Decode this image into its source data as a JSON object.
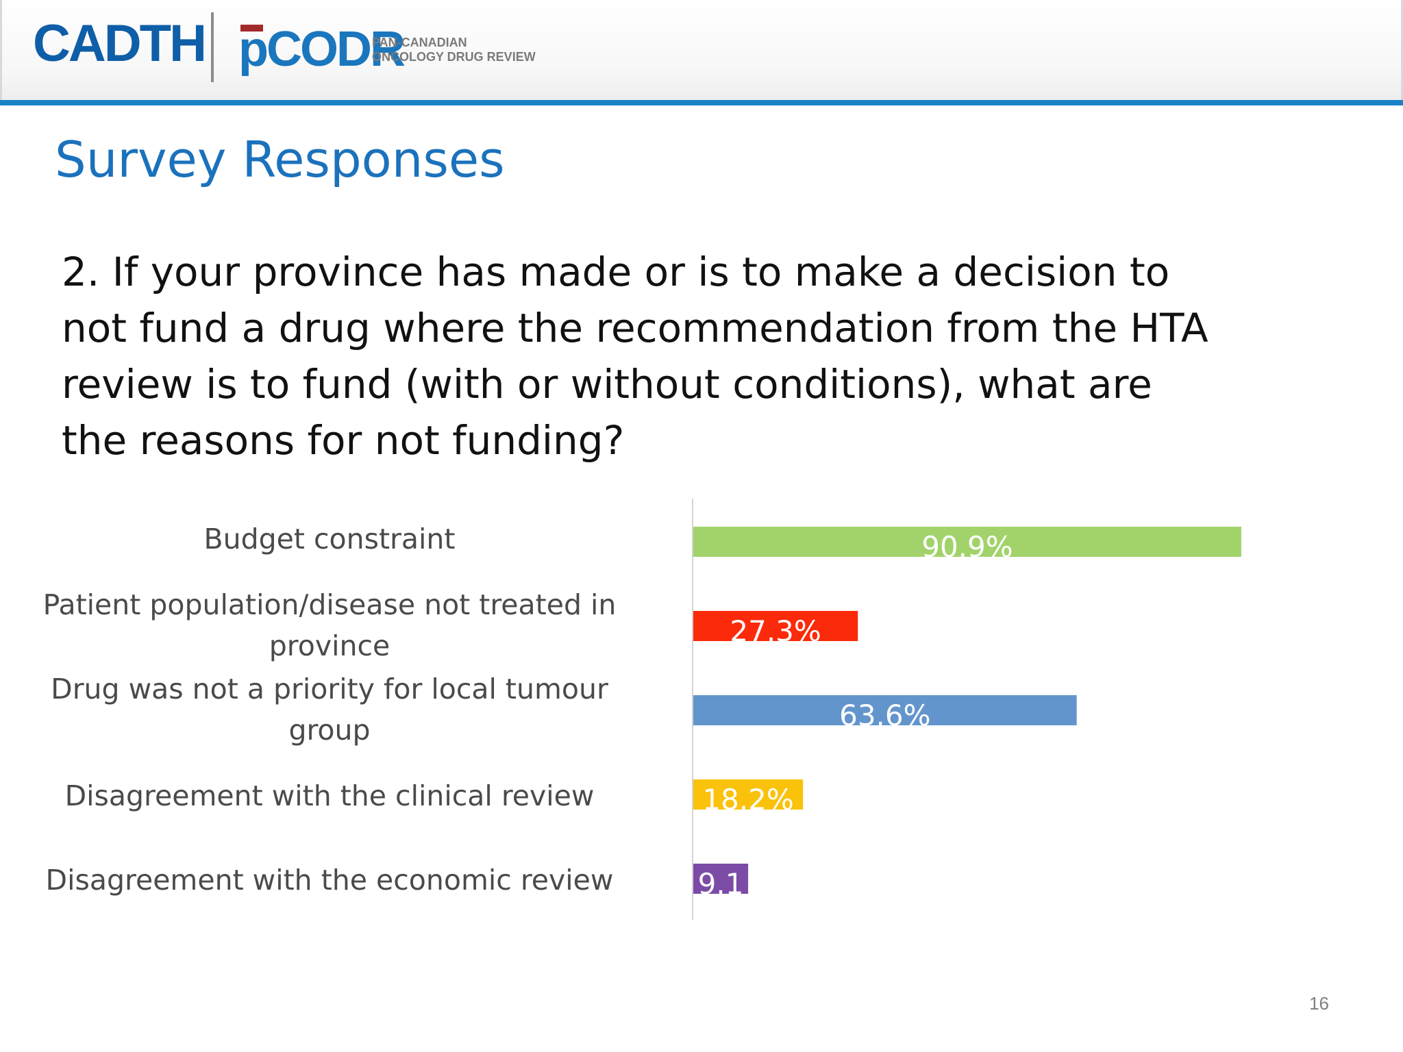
{
  "header": {
    "logo_primary": "CADTH",
    "logo_secondary": "pCODR",
    "logo_tagline": [
      "PAN-CANADIAN",
      "ONCOLOGY DRUG REVIEW"
    ]
  },
  "title": "Survey Responses",
  "question_lines": [
    "2. If your province has made or is to make a decision to",
    "not fund a drug where the recommendation from the HTA",
    "review is to fund (with or without conditions), what are",
    "the reasons for not funding?"
  ],
  "chart_data": {
    "type": "bar",
    "orientation": "horizontal",
    "categories": [
      [
        "Budget constraint"
      ],
      [
        "Patient population/disease not treated in",
        "province"
      ],
      [
        "Drug was not a priority for local tumour",
        "group"
      ],
      [
        "Disagreement with the clinical review"
      ],
      [
        "Disagreement with the economic review"
      ]
    ],
    "values": [
      90.9,
      27.3,
      63.6,
      18.2,
      9.1
    ],
    "value_labels": [
      "90.9%",
      "27.3%",
      "63.6%",
      "18.2%",
      "9.1"
    ],
    "colors": [
      "#a2d36b",
      "#fb2a0a",
      "#6395cd",
      "#fbc20c",
      "#7c4ba6"
    ],
    "xlim": [
      0,
      100
    ],
    "grid": false,
    "legend": "none"
  },
  "page_number": "16"
}
